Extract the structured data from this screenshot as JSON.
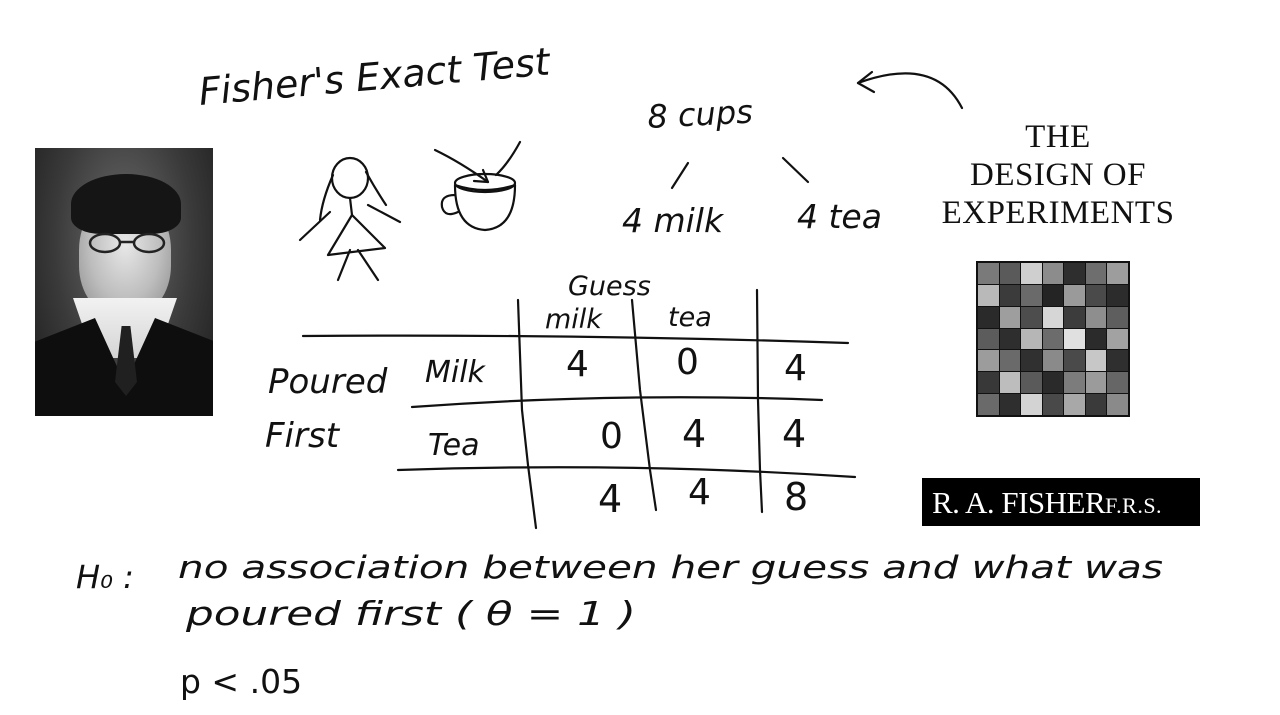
{
  "title": "Fisher's Exact Test",
  "cups": {
    "total": "8 cups",
    "milk": "4 milk",
    "tea": "4 tea"
  },
  "table": {
    "col_header": "Guess",
    "columns": [
      "milk",
      "tea"
    ],
    "row_header_line1": "Poured",
    "row_header_line2": "First",
    "rows": [
      {
        "label": "Milk",
        "cells": [
          "4",
          "0"
        ],
        "total": "4"
      },
      {
        "label": "Tea",
        "cells": [
          "0",
          "4"
        ],
        "total": "4"
      }
    ],
    "col_totals": [
      "4",
      "4"
    ],
    "grand_total": "8"
  },
  "hypothesis": {
    "label": "H₀ :",
    "line1": "no association between her guess and what was",
    "line2": "poured first  ( θ = 1 )"
  },
  "p_value": "p < .05",
  "book": {
    "title_line1": "THE",
    "title_line2": "DESIGN  OF",
    "title_line3": "EXPERIMENTS",
    "author": "R. A. FISHER",
    "author_suffix": "F.R.S.",
    "mosaic_shades": [
      "#7a7a7a",
      "#5a5a5a",
      "#cfcfcf",
      "#8c8c8c",
      "#2e2e2e",
      "#6e6e6e",
      "#9d9d9d",
      "#b9b9b9",
      "#3b3b3b",
      "#6a6a6a",
      "#242424",
      "#9a9a9a",
      "#4a4a4a",
      "#2c2c2c",
      "#2a2a2a",
      "#9e9e9e",
      "#4d4d4d",
      "#d6d6d6",
      "#3c3c3c",
      "#8e8e8e",
      "#5e5e5e",
      "#5c5c5c",
      "#2e2e2e",
      "#b6b6b6",
      "#6c6c6c",
      "#e0e0e0",
      "#2b2b2b",
      "#a2a2a2",
      "#9c9c9c",
      "#6a6a6a",
      "#303030",
      "#8a8a8a",
      "#4a4a4a",
      "#c7c7c7",
      "#2f2f2f",
      "#383838",
      "#bdbdbd",
      "#5a5a5a",
      "#2a2a2a",
      "#7c7c7c",
      "#9b9b9b",
      "#666666",
      "#6a6a6a",
      "#2e2e2e",
      "#d3d3d3",
      "#494949",
      "#a8a8a8",
      "#3a3a3a",
      "#8a8a8a"
    ]
  },
  "colors": {
    "ink": "#111111",
    "background": "#ffffff",
    "book_band": "#000000"
  }
}
